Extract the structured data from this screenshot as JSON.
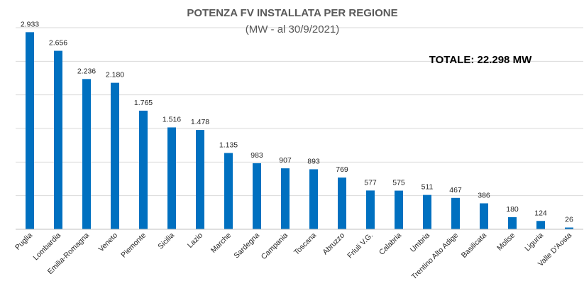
{
  "chart_data": {
    "type": "bar",
    "title": "POTENZA FV INSTALLATA PER REGIONE",
    "subtitle": "(MW - al 30/9/2021)",
    "annotation": "TOTALE:  22.298 MW",
    "categories": [
      "Puglia",
      "Lombardia",
      "Emilia-Romagna",
      "Veneto",
      "Piemonte",
      "Sicilia",
      "Lazio",
      "Marche",
      "Sardegna",
      "Campania",
      "Toscana",
      "Abruzzo",
      "Friuli V.G.",
      "Calabria",
      "Umbria",
      "Trentino Alto Adige",
      "Basilicata",
      "Molise",
      "Liguria",
      "Valle D'Aosta"
    ],
    "values": [
      2933,
      2656,
      2236,
      2180,
      1765,
      1516,
      1478,
      1135,
      983,
      907,
      893,
      769,
      577,
      575,
      511,
      467,
      386,
      180,
      124,
      26
    ],
    "value_labels": [
      "2.933",
      "2.656",
      "2.236",
      "2.180",
      "1.765",
      "1.516",
      "1.478",
      "1.135",
      "983",
      "907",
      "893",
      "769",
      "577",
      "575",
      "511",
      "467",
      "386",
      "180",
      "124",
      "26"
    ],
    "ylim": [
      0,
      3000
    ],
    "gridlines": [
      500,
      1000,
      1500,
      2000,
      2500,
      3000
    ],
    "grid": true,
    "xlabel": "",
    "ylabel": "",
    "bar_color": "#0070c0"
  }
}
